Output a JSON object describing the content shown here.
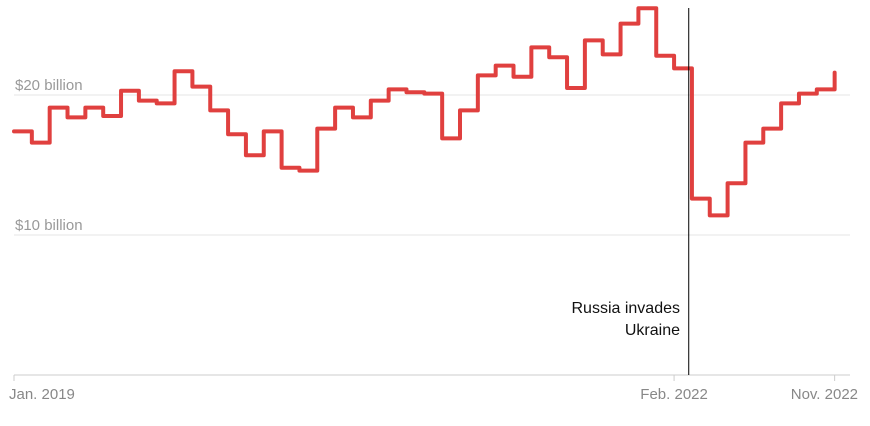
{
  "chart_data": {
    "type": "line",
    "style": "step",
    "title": "",
    "xlabel": "",
    "ylabel": "",
    "x_start": "2019-01",
    "x_end": "2022-11",
    "x_tick_labels": [
      {
        "month": "2019-01",
        "label": "Jan. 2019"
      },
      {
        "month": "2022-02",
        "label": "Feb. 2022"
      },
      {
        "month": "2022-11",
        "label": "Nov. 2022"
      }
    ],
    "y_ticks": [
      {
        "value": 10,
        "label": "$10 billion"
      },
      {
        "value": 20,
        "label": "$20 billion"
      }
    ],
    "ylim": [
      0,
      27
    ],
    "grid": "horizontal",
    "line_color": "#e0403f",
    "values": [
      17.4,
      16.6,
      19.1,
      18.4,
      19.1,
      18.5,
      20.3,
      19.6,
      19.4,
      21.7,
      20.6,
      18.9,
      17.2,
      15.7,
      17.4,
      14.8,
      14.6,
      17.6,
      19.1,
      18.4,
      19.6,
      20.4,
      20.2,
      20.1,
      16.9,
      18.9,
      21.4,
      22.1,
      21.3,
      23.4,
      22.7,
      20.5,
      23.9,
      22.9,
      25.1,
      26.2,
      22.8,
      21.9,
      12.6,
      11.4,
      13.7,
      16.6,
      17.6,
      19.4,
      20.1,
      20.4,
      21.6
    ],
    "annotation": {
      "date": "2022-02-24",
      "lines": [
        "Russia invades",
        "Ukraine"
      ]
    }
  }
}
